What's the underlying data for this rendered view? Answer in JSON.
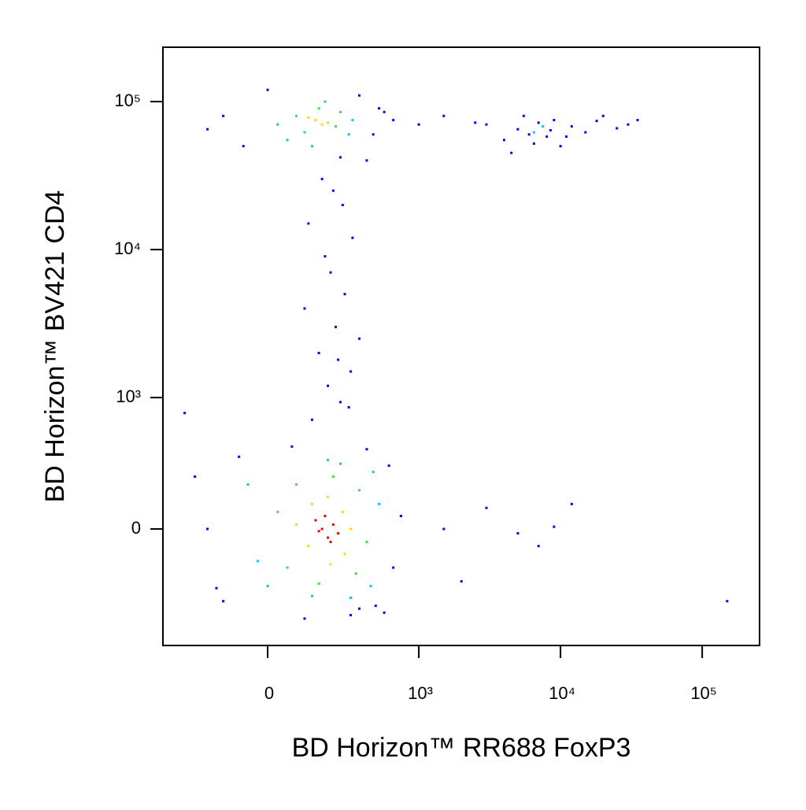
{
  "chart_data": {
    "type": "scatter",
    "scale": "biexponential",
    "x_label": "BD Horizon™ RR688 FoxP3",
    "y_label": "BD Horizon™ BV421  CD4",
    "xlim": [
      -393,
      254000
    ],
    "ylim": [
      -710,
      233000
    ],
    "xticks": [
      0,
      {
        "value": 1000,
        "label": "10³"
      },
      {
        "value": 10000,
        "label": "10⁴"
      },
      {
        "value": 100000,
        "label": "10⁵"
      }
    ],
    "yticks": [
      0,
      {
        "value": 1000,
        "label": "10³"
      },
      {
        "value": 10000,
        "label": "10⁴"
      },
      {
        "value": 100000,
        "label": "10⁵"
      }
    ],
    "series": [
      {
        "color": "#0000ff",
        "x": [
          -150,
          600,
          -100,
          550,
          300,
          -60,
          500,
          50,
          700,
          -120,
          420,
          250,
          80,
          350,
          -200,
          -100,
          400,
          500,
          -50,
          300,
          600,
          350,
          200,
          0,
          450,
          -150,
          1000,
          1500,
          2500,
          100,
          200,
          150,
          250,
          120,
          300,
          180,
          80,
          220,
          160,
          140,
          260,
          90,
          210,
          170,
          130,
          240,
          190,
          3000,
          4000,
          5000,
          6000,
          7000,
          8000,
          9000,
          10000,
          12000,
          15000,
          20000,
          25000,
          30000,
          4500,
          5500,
          6500,
          8500,
          11000,
          18000,
          35000,
          1500,
          3000,
          7000,
          12000,
          -250,
          2000,
          5000,
          9000,
          150000
        ],
        "values": [
          0,
          -100,
          -250,
          200,
          -300,
          250,
          -330,
          320,
          30,
          -180,
          -280,
          -350,
          -380,
          300,
          150,
          80000,
          60000,
          85000,
          50000,
          110000,
          75000,
          40000,
          42000,
          120000,
          90000,
          65000,
          70000,
          80000,
          72000,
          600,
          900,
          1200,
          1500,
          2000,
          2500,
          3000,
          4000,
          5000,
          7000,
          9000,
          12000,
          15000,
          20000,
          25000,
          30000,
          800,
          1800,
          70000,
          55000,
          65000,
          60000,
          72000,
          58000,
          75000,
          50000,
          68000,
          62000,
          80000,
          66000,
          70000,
          45000,
          80000,
          52000,
          64000,
          58000,
          74000,
          75000,
          0,
          50,
          -40,
          60,
          700,
          -150,
          -10,
          5,
          -250
        ]
      },
      {
        "color": "#00c8ff",
        "x": [
          0,
          400,
          -20,
          380,
          200,
          100,
          450,
          -40,
          250,
          150,
          20,
          260,
          40,
          240,
          140,
          100,
          6500,
          7500
        ],
        "values": [
          -170,
          170,
          -80,
          -170,
          210,
          -220,
          60,
          120,
          -230,
          230,
          70000,
          75000,
          55000,
          60000,
          100000,
          50000,
          62000,
          68000
        ]
      },
      {
        "color": "#40e040",
        "x": [
          40,
          300,
          60,
          280,
          170,
          120,
          350,
          20,
          60,
          180,
          80,
          200,
          120
        ],
        "values": [
          -100,
          100,
          120,
          -120,
          150,
          -160,
          -30,
          40,
          80000,
          68000,
          62000,
          85000,
          90000
        ]
      },
      {
        "color": "#ffd800",
        "x": [
          90,
          210,
          100,
          220,
          150,
          160,
          250,
          60,
          110,
          130,
          90,
          150
        ],
        "values": [
          -40,
          40,
          60,
          -60,
          80,
          -90,
          0,
          10,
          75000,
          70000,
          78000,
          72000
        ]
      },
      {
        "color": "#ee0000",
        "x": [
          130,
          150,
          170,
          110,
          190,
          140,
          160,
          120
        ],
        "values": [
          0,
          -20,
          10,
          20,
          -10,
          30,
          -30,
          -5
        ]
      }
    ]
  }
}
